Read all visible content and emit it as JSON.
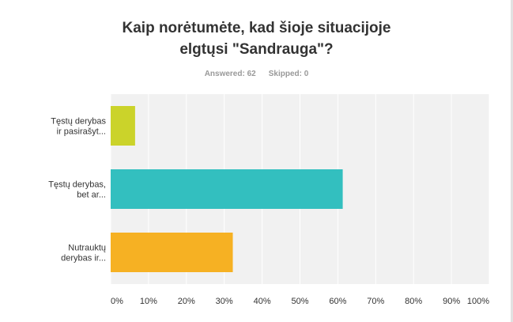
{
  "title_lines": [
    "Kaip norėtumėte, kad šioje situacijoje",
    "elgtųsi \"Sandrauga\"?"
  ],
  "stats": {
    "answered": "Answered: 62",
    "skipped": "Skipped: 0"
  },
  "chart_data": {
    "type": "bar",
    "orientation": "horizontal",
    "categories": [
      [
        "Tęstų derybas",
        "ir pasirašyt..."
      ],
      [
        "Tęstų derybas,",
        "bet ar..."
      ],
      [
        "Nutrauktų",
        "derybas ir..."
      ]
    ],
    "values": [
      6.45,
      61.29,
      32.26
    ],
    "colors": [
      "#cbd32a",
      "#33bfbf",
      "#f6b123"
    ],
    "xlim": [
      0,
      100
    ],
    "x_ticks": [
      "0%",
      "10%",
      "20%",
      "30%",
      "40%",
      "50%",
      "60%",
      "70%",
      "80%",
      "90%",
      "100%"
    ],
    "grid": true
  }
}
